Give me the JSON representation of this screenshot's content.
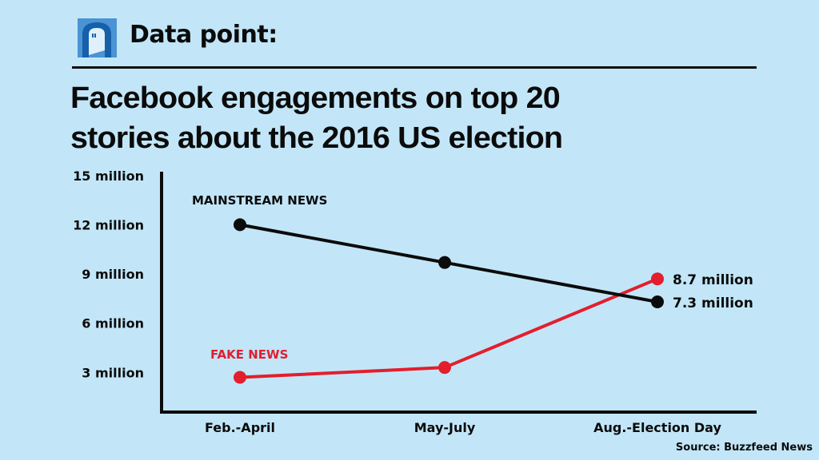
{
  "header": {
    "logo_icon": "door-arch-icon",
    "kicker": "Data point:"
  },
  "title_lines": [
    "Facebook engagements on top 20",
    "stories about the 2016 US election"
  ],
  "source": "Source: Buzzfeed News",
  "colors": {
    "background": "#c2e6f8",
    "mainstream": "#0b0b0b",
    "fake": "#e31e2d",
    "logo_dark": "#1560a8",
    "logo_light": "#4a93d4"
  },
  "chart_data": {
    "type": "line",
    "title": "Facebook engagements on top 20 stories about the 2016 US election",
    "xlabel": "",
    "ylabel": "",
    "categories": [
      "Feb.-April",
      "May-July",
      "Aug.-Election Day"
    ],
    "ylim": [
      0,
      15
    ],
    "yunit": "million",
    "yticks": [
      3,
      6,
      9,
      12,
      15
    ],
    "ytick_labels": [
      "3 million",
      "6 million",
      "9 million",
      "12 million",
      "15 million"
    ],
    "grid": false,
    "series": [
      {
        "name": "MAINSTREAM NEWS",
        "color": "#0b0b0b",
        "values": [
          12.0,
          9.7,
          7.3
        ],
        "end_label": "7.3 million"
      },
      {
        "name": "FAKE NEWS",
        "color": "#e31e2d",
        "values": [
          2.7,
          3.3,
          8.7
        ],
        "end_label": "8.7 million"
      }
    ]
  }
}
